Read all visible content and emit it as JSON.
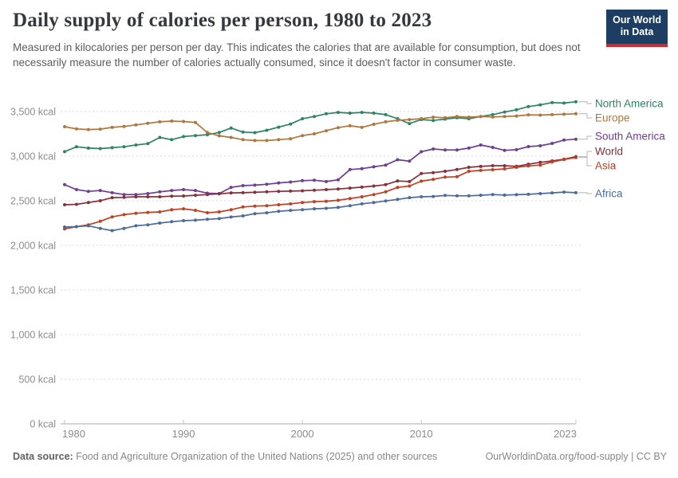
{
  "header": {
    "title": "Daily supply of calories per person, 1980 to 2023",
    "subtitle": "Measured in kilocalories per person per day. This indicates the calories that are available for consumption, but does not necessarily measure the number of calories actually consumed, since it doesn't factor in consumer waste."
  },
  "logo": {
    "line1": "Our World",
    "line2": "in Data",
    "bg_color": "#1d3d63",
    "stripe_color": "#d7282f"
  },
  "footer": {
    "source_label": "Data source:",
    "source_text": "Food and Agriculture Organization of the United Nations (2025) and other sources",
    "link_text": "OurWorldinData.org/food-supply | CC BY"
  },
  "chart_data": {
    "type": "line",
    "title": "Daily supply of calories per person, 1980 to 2023",
    "xlabel": "",
    "ylabel": "kcal per person per day",
    "unit_suffix": " kcal",
    "x_range": [
      1980,
      2023
    ],
    "ylim": [
      0,
      3650
    ],
    "grid": "horizontal-dashed",
    "legend_position": "right-of-lines",
    "yticks": [
      {
        "value": 0,
        "label": "0 kcal"
      },
      {
        "value": 500,
        "label": "500 kcal"
      },
      {
        "value": 1000,
        "label": "1,000 kcal"
      },
      {
        "value": 1500,
        "label": "1,500 kcal"
      },
      {
        "value": 2000,
        "label": "2,000 kcal"
      },
      {
        "value": 2500,
        "label": "2,500 kcal"
      },
      {
        "value": 3000,
        "label": "3,000 kcal"
      },
      {
        "value": 3500,
        "label": "3,500 kcal"
      }
    ],
    "xticks": [
      {
        "value": 1980,
        "label": "1980"
      },
      {
        "value": 1990,
        "label": "1990"
      },
      {
        "value": 2000,
        "label": "2000"
      },
      {
        "value": 2010,
        "label": "2010"
      },
      {
        "value": 2023,
        "label": "2023"
      }
    ],
    "x": [
      1980,
      1981,
      1982,
      1983,
      1984,
      1985,
      1986,
      1987,
      1988,
      1989,
      1990,
      1991,
      1992,
      1993,
      1994,
      1995,
      1996,
      1997,
      1998,
      1999,
      2000,
      2001,
      2002,
      2003,
      2004,
      2005,
      2006,
      2007,
      2008,
      2009,
      2010,
      2011,
      2012,
      2013,
      2014,
      2015,
      2016,
      2017,
      2018,
      2019,
      2020,
      2021,
      2022,
      2023
    ],
    "series": [
      {
        "name": "North America",
        "color": "#2C8465",
        "values": [
          3050,
          3105,
          3090,
          3085,
          3095,
          3105,
          3125,
          3140,
          3210,
          3185,
          3220,
          3230,
          3240,
          3265,
          3315,
          3270,
          3263,
          3290,
          3325,
          3360,
          3420,
          3445,
          3475,
          3490,
          3482,
          3490,
          3482,
          3465,
          3420,
          3365,
          3410,
          3400,
          3415,
          3430,
          3420,
          3445,
          3465,
          3495,
          3520,
          3555,
          3575,
          3600,
          3595,
          3610
        ]
      },
      {
        "name": "Europe",
        "color": "#B0763B",
        "values": [
          3330,
          3305,
          3298,
          3303,
          3322,
          3333,
          3350,
          3368,
          3385,
          3393,
          3388,
          3378,
          3265,
          3228,
          3210,
          3185,
          3175,
          3175,
          3185,
          3195,
          3230,
          3250,
          3285,
          3320,
          3340,
          3322,
          3357,
          3385,
          3402,
          3410,
          3420,
          3437,
          3430,
          3445,
          3437,
          3445,
          3438,
          3445,
          3450,
          3463,
          3460,
          3465,
          3470,
          3475
        ]
      },
      {
        "name": "South America",
        "color": "#6D3E91",
        "values": [
          2680,
          2625,
          2605,
          2615,
          2590,
          2570,
          2570,
          2580,
          2600,
          2615,
          2625,
          2615,
          2585,
          2580,
          2650,
          2670,
          2675,
          2685,
          2700,
          2710,
          2725,
          2730,
          2715,
          2735,
          2850,
          2860,
          2880,
          2900,
          2960,
          2945,
          3050,
          3080,
          3070,
          3070,
          3090,
          3125,
          3098,
          3065,
          3072,
          3107,
          3116,
          3143,
          3180,
          3190
        ]
      },
      {
        "name": "World",
        "color": "#883039",
        "values": [
          2455,
          2460,
          2480,
          2500,
          2535,
          2538,
          2545,
          2545,
          2545,
          2552,
          2554,
          2562,
          2570,
          2578,
          2588,
          2590,
          2595,
          2600,
          2605,
          2608,
          2612,
          2618,
          2625,
          2632,
          2642,
          2653,
          2665,
          2680,
          2722,
          2715,
          2805,
          2815,
          2830,
          2850,
          2875,
          2885,
          2893,
          2893,
          2886,
          2910,
          2930,
          2946,
          2965,
          2995
        ]
      },
      {
        "name": "Asia",
        "color": "#BF4025",
        "values": [
          2185,
          2210,
          2230,
          2270,
          2320,
          2345,
          2360,
          2370,
          2375,
          2400,
          2410,
          2393,
          2366,
          2375,
          2400,
          2430,
          2440,
          2445,
          2455,
          2465,
          2480,
          2490,
          2495,
          2505,
          2525,
          2545,
          2570,
          2600,
          2650,
          2665,
          2720,
          2740,
          2765,
          2770,
          2830,
          2840,
          2848,
          2857,
          2875,
          2890,
          2900,
          2935,
          2962,
          2985
        ]
      },
      {
        "name": "Africa",
        "color": "#4C6A9C",
        "values": [
          2205,
          2210,
          2220,
          2190,
          2165,
          2190,
          2220,
          2230,
          2250,
          2265,
          2277,
          2282,
          2292,
          2300,
          2318,
          2330,
          2355,
          2365,
          2382,
          2392,
          2400,
          2410,
          2415,
          2425,
          2445,
          2465,
          2480,
          2498,
          2515,
          2535,
          2545,
          2548,
          2560,
          2555,
          2555,
          2562,
          2570,
          2563,
          2568,
          2572,
          2580,
          2588,
          2597,
          2590
        ]
      }
    ]
  }
}
